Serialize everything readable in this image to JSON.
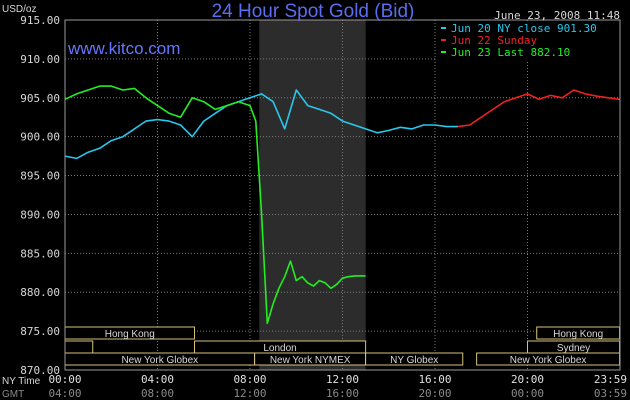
{
  "chart_data": {
    "type": "line",
    "title": "24 Hour Spot Gold (Bid)",
    "website": "www.kitco.com",
    "timestamp": "June 23, 2008 11:48",
    "ylabel": "USD/oz",
    "ylim": [
      870,
      915
    ],
    "y_ticks": [
      "915.00",
      "910.00",
      "905.00",
      "900.00",
      "895.00",
      "890.00",
      "885.00",
      "880.00",
      "875.00",
      "870.00"
    ],
    "y_tick_values": [
      915,
      910,
      905,
      900,
      895,
      890,
      885,
      880,
      875,
      870
    ],
    "xlim": [
      0,
      24
    ],
    "x_tick_values": [
      0,
      4,
      8,
      12,
      16,
      20,
      24
    ],
    "row_labels": {
      "ny_time": "NY Time",
      "gmt": "GMT"
    },
    "x_ticks_ny": [
      "00:00",
      "04:00",
      "08:00",
      "12:00",
      "16:00",
      "20:00",
      "23:59"
    ],
    "x_ticks_gmt": [
      "04:00",
      "08:00",
      "12:00",
      "16:00",
      "20:00",
      "00:00",
      "03:59"
    ],
    "grid": true,
    "legend_position": "top-right",
    "shaded_region_hours": [
      8.4,
      13.0
    ],
    "legend": [
      {
        "text": "Jun 20 NY close 901.30",
        "color": "#27c7ee"
      },
      {
        "text": "Jun 22 Sunday",
        "color": "#ee2222"
      },
      {
        "text": "Jun 23 Last 882.10",
        "color": "#22ee22"
      }
    ],
    "series": [
      {
        "name": "Jun 20",
        "color": "#27c7ee",
        "x": [
          0,
          0.5,
          1,
          1.5,
          2,
          2.5,
          3,
          3.5,
          4,
          4.5,
          5,
          5.5,
          6,
          6.5,
          7,
          7.5,
          8,
          8.5,
          9,
          9.5,
          10,
          10.5,
          11,
          11.5,
          12,
          12.5,
          13,
          13.5,
          14,
          14.5,
          15,
          15.5,
          16,
          16.5,
          17
        ],
        "y": [
          897.5,
          897.2,
          898.0,
          898.5,
          899.5,
          900.0,
          901.0,
          902.0,
          902.2,
          902.0,
          901.5,
          900.0,
          902.0,
          903.0,
          904.0,
          904.5,
          905.0,
          905.5,
          904.5,
          901.0,
          906.0,
          904.0,
          903.5,
          903.0,
          902.0,
          901.5,
          901.0,
          900.5,
          900.8,
          901.2,
          901.0,
          901.5,
          901.5,
          901.3,
          901.3
        ]
      },
      {
        "name": "Jun 22",
        "color": "#ee2222",
        "x": [
          17,
          17.5,
          18,
          18.5,
          19,
          19.5,
          20,
          20.5,
          21,
          21.5,
          22,
          22.5,
          23,
          23.5,
          23.98
        ],
        "y": [
          901.3,
          901.5,
          902.5,
          903.5,
          904.5,
          905.0,
          905.5,
          904.8,
          905.3,
          905.0,
          906.0,
          905.5,
          905.2,
          905.0,
          904.8
        ]
      },
      {
        "name": "Jun 23",
        "color": "#22ee22",
        "x": [
          0,
          0.5,
          1,
          1.5,
          2,
          2.5,
          3,
          3.5,
          4,
          4.5,
          5,
          5.5,
          6,
          6.5,
          7,
          7.5,
          8,
          8.25,
          8.5,
          8.75,
          9,
          9.25,
          9.5,
          9.75,
          10,
          10.25,
          10.5,
          10.75,
          11,
          11.25,
          11.5,
          11.75,
          12,
          12.25,
          12.5,
          12.75,
          13
        ],
        "y": [
          904.8,
          905.5,
          906.0,
          906.5,
          906.5,
          906.0,
          906.2,
          905.0,
          904.0,
          903.0,
          902.5,
          905.0,
          904.5,
          903.5,
          904.0,
          904.5,
          904.0,
          902.0,
          890.0,
          876.0,
          878.5,
          880.5,
          882.0,
          884.0,
          881.5,
          882.0,
          881.2,
          880.8,
          881.5,
          881.2,
          880.5,
          881.0,
          881.8,
          882.0,
          882.1,
          882.1,
          882.1
        ]
      }
    ],
    "sessions": [
      {
        "label": "Hong Kong",
        "start": 0,
        "end": 5.6,
        "row": 0
      },
      {
        "label": "Hong Kong",
        "start": 20.4,
        "end": 23.98,
        "row": 0
      },
      {
        "label": "London",
        "start": 0,
        "end": 1.2,
        "row": 1
      },
      {
        "label": "London",
        "start": 5.6,
        "end": 13.0,
        "row": 1
      },
      {
        "label": "Sydney",
        "start": 20.0,
        "end": 23.98,
        "row": 1
      },
      {
        "label": "New York Globex",
        "start": 0,
        "end": 8.2,
        "row": 2
      },
      {
        "label": "New York NYMEX",
        "start": 8.2,
        "end": 13.0,
        "row": 2
      },
      {
        "label": "NY Globex",
        "start": 13.0,
        "end": 17.2,
        "row": 2
      },
      {
        "label": "New York Globex",
        "start": 17.8,
        "end": 23.98,
        "row": 2
      }
    ]
  }
}
